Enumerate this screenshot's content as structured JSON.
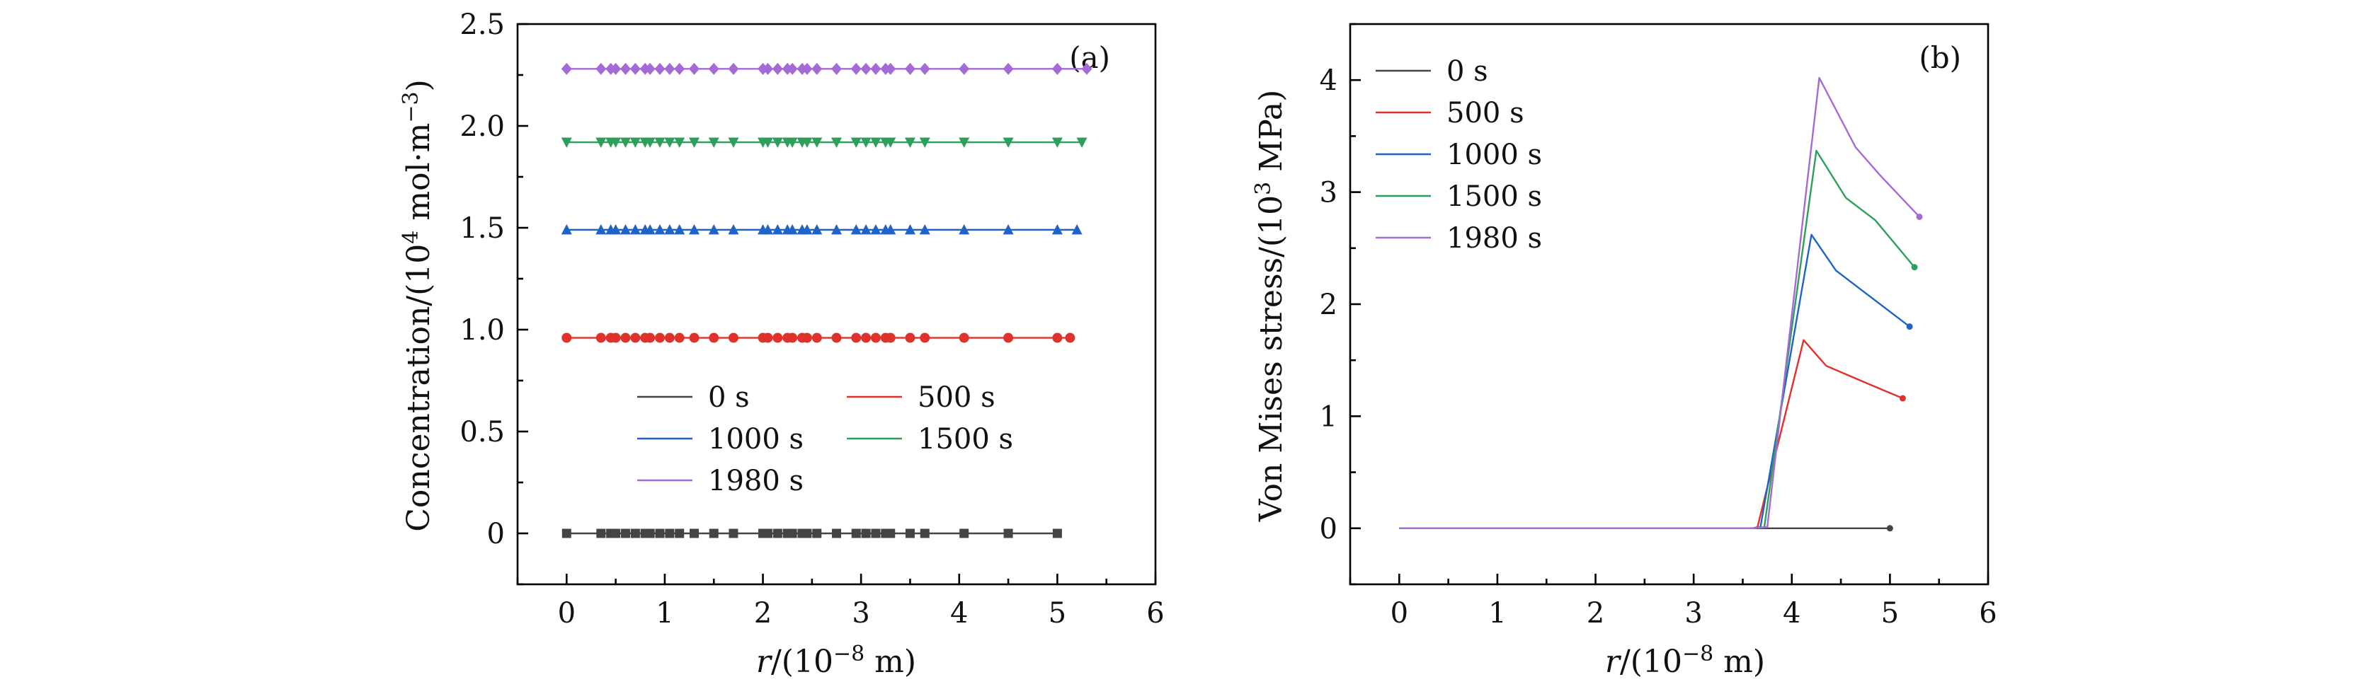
{
  "colors": {
    "0 s": "#444444",
    "500 s": "#e0312b",
    "1000 s": "#1f63c6",
    "1500 s": "#2e9e5b",
    "1980 s": "#a46ad6"
  },
  "chart_data": [
    {
      "panel": "(a)",
      "type": "line",
      "xlabel_var": "r",
      "xlabel_unit": "/(10",
      "xlabel_exp": "−8",
      "xlabel_tail": " m)",
      "ylabel_main": "Concentration/(10",
      "ylabel_exp": "4",
      "ylabel_mid": " mol·m",
      "ylabel_exp2": "−3",
      "ylabel_tail": ")",
      "xlim": [
        -0.5,
        6
      ],
      "ylim": [
        -0.25,
        2.5
      ],
      "xticks": [
        0,
        1,
        2,
        3,
        4,
        5,
        6
      ],
      "xtick_labels": [
        "0",
        "1",
        "2",
        "3",
        "4",
        "5",
        "6"
      ],
      "yticks": [
        0,
        0.5,
        1.0,
        1.5,
        2.0,
        2.5
      ],
      "ytick_labels": [
        "0",
        "0.5",
        "1.0",
        "1.5",
        "2.0",
        "2.5"
      ],
      "x_points": [
        0,
        0.35,
        0.45,
        0.5,
        0.6,
        0.7,
        0.8,
        0.85,
        0.95,
        1.05,
        1.15,
        1.3,
        1.5,
        1.7,
        2.0,
        2.05,
        2.15,
        2.25,
        2.3,
        2.4,
        2.45,
        2.55,
        2.75,
        2.95,
        3.05,
        3.15,
        3.25,
        3.3,
        3.5,
        3.65,
        4.05,
        4.5,
        5.0
      ],
      "series": [
        {
          "name": "0 s",
          "marker": "square",
          "value": 0.0,
          "x_end": 5.0
        },
        {
          "name": "500 s",
          "marker": "circle",
          "value": 0.96,
          "x_end": 5.13
        },
        {
          "name": "1000 s",
          "marker": "triangle-up",
          "value": 1.49,
          "x_end": 5.2
        },
        {
          "name": "1500 s",
          "marker": "triangle-down",
          "value": 1.92,
          "x_end": 5.25
        },
        {
          "name": "1980 s",
          "marker": "diamond",
          "value": 2.28,
          "x_end": 5.3
        }
      ],
      "legend_position": "lower-center"
    },
    {
      "panel": "(b)",
      "type": "line",
      "xlabel_var": "r",
      "xlabel_unit": "/(10",
      "xlabel_exp": "−8",
      "xlabel_tail": " m)",
      "ylabel_main": "Von Mises stress/(10",
      "ylabel_exp": "3",
      "ylabel_tail": " MPa)",
      "xlim": [
        -0.5,
        6
      ],
      "ylim": [
        -0.5,
        4.5
      ],
      "xticks": [
        0,
        1,
        2,
        3,
        4,
        5,
        6
      ],
      "xtick_labels": [
        "0",
        "1",
        "2",
        "3",
        "4",
        "5",
        "6"
      ],
      "yticks": [
        0,
        1,
        2,
        3,
        4
      ],
      "ytick_labels": [
        "0",
        "1",
        "2",
        "3",
        "4"
      ],
      "series": [
        {
          "name": "0 s",
          "x": [
            0,
            3.6,
            5.0
          ],
          "y": [
            0,
            0,
            0
          ]
        },
        {
          "name": "500 s",
          "x": [
            0,
            3.6,
            3.65,
            4.12,
            4.35,
            4.75,
            5.13
          ],
          "y": [
            0,
            0,
            0.01,
            1.68,
            1.45,
            1.3,
            1.16
          ]
        },
        {
          "name": "1000 s",
          "x": [
            0,
            3.6,
            3.68,
            4.2,
            4.45,
            4.75,
            5.2
          ],
          "y": [
            0,
            0,
            0.01,
            2.62,
            2.3,
            2.1,
            1.8
          ]
        },
        {
          "name": "1500 s",
          "x": [
            0,
            3.6,
            3.72,
            4.25,
            4.55,
            4.85,
            5.25
          ],
          "y": [
            0,
            0,
            0.01,
            3.37,
            2.95,
            2.75,
            2.33
          ]
        },
        {
          "name": "1980 s",
          "x": [
            0,
            3.6,
            3.75,
            4.28,
            4.65,
            4.9,
            5.3
          ],
          "y": [
            0,
            0,
            0.01,
            4.02,
            3.4,
            3.15,
            2.78
          ]
        }
      ],
      "legend_position": "top-left"
    }
  ]
}
